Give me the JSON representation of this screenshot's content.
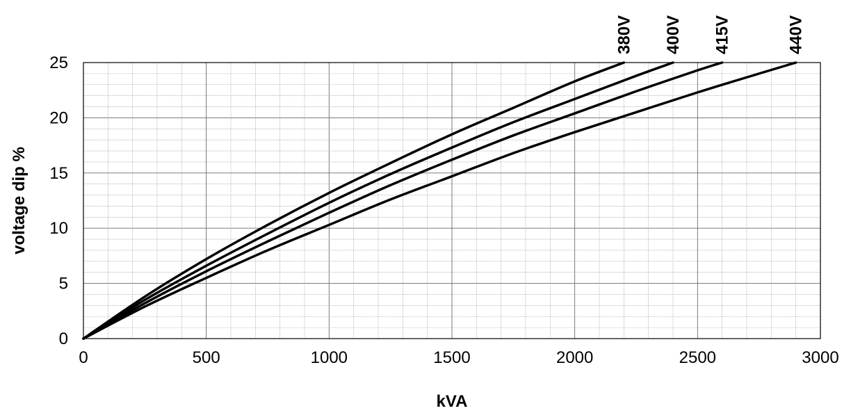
{
  "chart_data": {
    "type": "line",
    "title": "",
    "xlabel": "kVA",
    "ylabel": "voltage dip %",
    "xlim": [
      0,
      3000
    ],
    "ylim": [
      0,
      25
    ],
    "x_ticks": [
      0,
      500,
      1000,
      1500,
      2000,
      2500,
      3000
    ],
    "y_ticks": [
      0,
      5,
      10,
      15,
      20,
      25
    ],
    "x_minor_step": 100,
    "y_minor_step": 1,
    "grid": true,
    "legend": "series labels above plot at end of each curve",
    "line_color": "#000000",
    "series": [
      {
        "name": "380V",
        "x": [
          0,
          250,
          500,
          750,
          1000,
          1250,
          1500,
          1750,
          2000,
          2200
        ],
        "y": [
          0,
          3.8,
          7.2,
          10.3,
          13.2,
          15.9,
          18.5,
          20.9,
          23.3,
          25
        ]
      },
      {
        "name": "400V",
        "x": [
          0,
          250,
          500,
          750,
          1000,
          1250,
          1500,
          1750,
          2000,
          2250,
          2400
        ],
        "y": [
          0,
          3.5,
          6.6,
          9.5,
          12.3,
          14.9,
          17.3,
          19.6,
          21.7,
          23.8,
          25
        ]
      },
      {
        "name": "415V",
        "x": [
          0,
          250,
          500,
          750,
          1000,
          1250,
          1500,
          1750,
          2000,
          2250,
          2500,
          2600
        ],
        "y": [
          0,
          3.2,
          6.1,
          8.8,
          11.4,
          13.9,
          16.2,
          18.4,
          20.4,
          22.4,
          24.3,
          25
        ]
      },
      {
        "name": "440V",
        "x": [
          0,
          250,
          500,
          750,
          1000,
          1250,
          1500,
          1750,
          2000,
          2250,
          2500,
          2750,
          2900
        ],
        "y": [
          0,
          2.9,
          5.5,
          8.0,
          10.3,
          12.6,
          14.7,
          16.8,
          18.7,
          20.5,
          22.3,
          24.0,
          25
        ]
      }
    ]
  }
}
